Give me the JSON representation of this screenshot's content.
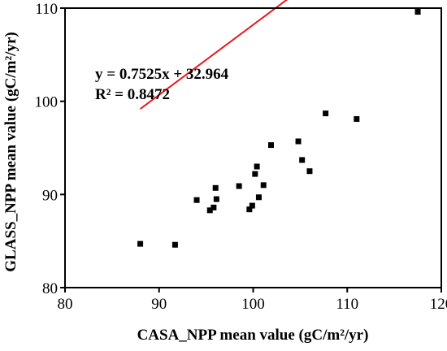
{
  "chart_data": {
    "type": "scatter",
    "xlabel": "CASA_NPP  mean value  (gC/m²/yr)",
    "ylabel": "GLASS_NPP mean value (gC/m²/yr)",
    "xlim": [
      80,
      120
    ],
    "ylim": [
      80,
      110
    ],
    "xticks": [
      80,
      90,
      100,
      110,
      120
    ],
    "yticks": [
      80,
      90,
      100,
      110
    ],
    "grid": false,
    "points": [
      {
        "x": 88.0,
        "y": 84.7
      },
      {
        "x": 91.7,
        "y": 84.6
      },
      {
        "x": 94.0,
        "y": 89.4
      },
      {
        "x": 95.4,
        "y": 88.3
      },
      {
        "x": 95.8,
        "y": 88.6
      },
      {
        "x": 96.0,
        "y": 90.7
      },
      {
        "x": 96.1,
        "y": 89.5
      },
      {
        "x": 98.5,
        "y": 90.9
      },
      {
        "x": 99.6,
        "y": 88.4
      },
      {
        "x": 99.9,
        "y": 88.8
      },
      {
        "x": 100.2,
        "y": 92.2
      },
      {
        "x": 100.4,
        "y": 93.0
      },
      {
        "x": 100.6,
        "y": 89.7
      },
      {
        "x": 101.1,
        "y": 91.0
      },
      {
        "x": 101.9,
        "y": 95.3
      },
      {
        "x": 104.8,
        "y": 95.7
      },
      {
        "x": 105.2,
        "y": 93.7
      },
      {
        "x": 106.0,
        "y": 92.5
      },
      {
        "x": 107.7,
        "y": 98.7
      },
      {
        "x": 111.0,
        "y": 98.1
      },
      {
        "x": 117.5,
        "y": 109.6
      }
    ],
    "fit": {
      "slope": 0.7525,
      "intercept": 32.964,
      "x_range": [
        88.0,
        117.5
      ],
      "color": "#e8191b"
    },
    "marker_color": "#000000",
    "annotations": {
      "equation": "y = 0.7525x + 32.964",
      "r_squared": "R² = 0.8472"
    }
  }
}
